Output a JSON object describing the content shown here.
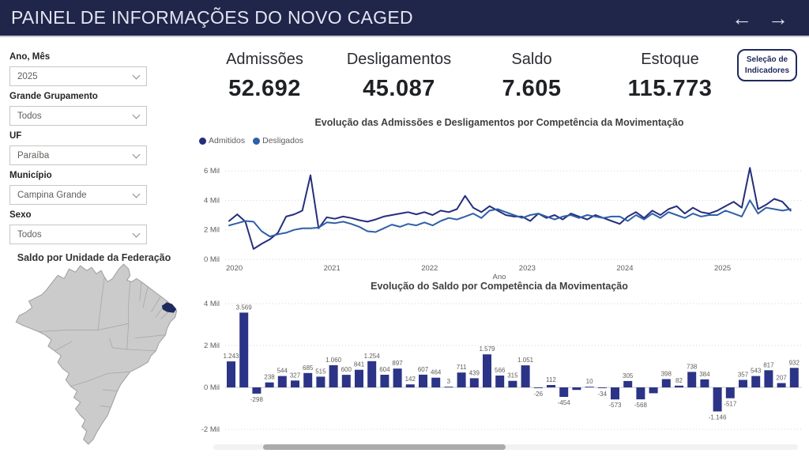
{
  "header": {
    "title": "PAINEL DE INFORMAÇÕES DO NOVO CAGED",
    "nav_back": "←",
    "nav_forward": "→"
  },
  "filters": [
    {
      "label": "Ano, Mês",
      "value": "2025"
    },
    {
      "label": "Grande Grupamento",
      "value": "Todos"
    },
    {
      "label": "UF",
      "value": "Paraíba"
    },
    {
      "label": "Município",
      "value": "Campina Grande"
    },
    {
      "label": "Sexo",
      "value": "Todos"
    }
  ],
  "map": {
    "title": "Saldo por Unidade da Federação",
    "highlight_state": "Paraíba",
    "state_fill": "#cbcbcb",
    "state_border": "#9e9e9e",
    "inner_border": "#a8a8a8",
    "highlight_color": "#1e2a5e"
  },
  "kpis": [
    {
      "label": "Admissões",
      "value": "52.692"
    },
    {
      "label": "Desligamentos",
      "value": "45.087"
    },
    {
      "label": "Saldo",
      "value": "7.605"
    },
    {
      "label": "Estoque",
      "value": "115.773"
    }
  ],
  "selection_button": {
    "line1": "Seleção de",
    "line2": "Indicadores"
  },
  "chart_data": [
    {
      "type": "line",
      "title": "Evolução das Admissões e Desligamentos por Competência da Movimentação",
      "xlabel": "Ano",
      "ylabel": "",
      "x_start": "2020-01",
      "x_interval": "month",
      "x_ticks": [
        "2020",
        "2021",
        "2022",
        "2023",
        "2024",
        "2025"
      ],
      "y_ticks": [
        [
          0,
          "0 Mil"
        ],
        [
          2000,
          "2 Mil"
        ],
        [
          4000,
          "4 Mil"
        ],
        [
          6000,
          "6 Mil"
        ]
      ],
      "ylim": [
        0,
        6700
      ],
      "grid": "dotted",
      "legend_position": "top-left",
      "series": [
        {
          "name": "Admitidos",
          "color": "#252e7d",
          "values": [
            2600,
            3050,
            2550,
            700,
            1050,
            1350,
            1800,
            2900,
            3050,
            3300,
            5700,
            2100,
            2850,
            2750,
            2900,
            2800,
            2650,
            2550,
            2700,
            2900,
            3000,
            3100,
            3200,
            3050,
            3200,
            3000,
            3300,
            3200,
            3400,
            4300,
            3500,
            3200,
            3600,
            3300,
            3000,
            2900,
            2900,
            2600,
            3100,
            2800,
            3000,
            2700,
            3100,
            2900,
            2700,
            3000,
            2800,
            2600,
            2400,
            2900,
            3200,
            2800,
            3300,
            3000,
            3400,
            3600,
            3100,
            3500,
            3200,
            3100,
            3300,
            3600,
            3900,
            3500,
            6200,
            3400,
            3700,
            4100,
            3900,
            3300
          ]
        },
        {
          "name": "Desligados",
          "color": "#2f5fa8",
          "values": [
            2300,
            2450,
            2600,
            2550,
            1900,
            1550,
            1700,
            1800,
            2000,
            2100,
            2100,
            2150,
            2500,
            2450,
            2550,
            2400,
            2200,
            1900,
            1850,
            2100,
            2350,
            2200,
            2400,
            2300,
            2500,
            2300,
            2600,
            2800,
            2700,
            2900,
            3100,
            2800,
            3300,
            3400,
            3200,
            3000,
            2800,
            3000,
            3100,
            2900,
            2700,
            2900,
            3000,
            2800,
            3000,
            2900,
            2800,
            2900,
            2900,
            2600,
            3000,
            2700,
            3100,
            2800,
            3200,
            3000,
            2800,
            3100,
            2900,
            3000,
            3000,
            3300,
            3100,
            2900,
            4000,
            3100,
            3500,
            3400,
            3300,
            3400
          ]
        }
      ]
    },
    {
      "type": "bar",
      "title": "Evolução do Saldo por Competência da Movimentação",
      "xlabel": "",
      "ylabel": "",
      "y_ticks": [
        [
          -2000,
          "-2 Mil"
        ],
        [
          0,
          "0 Mil"
        ],
        [
          2000,
          "2 Mil"
        ],
        [
          4000,
          "4 Mil"
        ]
      ],
      "ylim": [
        -2300,
        4300
      ],
      "grid": "dotted",
      "bar_color": "#2b3487",
      "values": [
        1243,
        3569,
        -298,
        238,
        544,
        327,
        685,
        515,
        1060,
        600,
        841,
        1254,
        604,
        897,
        142,
        607,
        464,
        3,
        711,
        439,
        1579,
        566,
        315,
        1051,
        -26,
        112,
        -454,
        -120,
        10,
        -34,
        -573,
        305,
        -568,
        -280,
        398,
        82,
        738,
        384,
        -1146,
        -517,
        357,
        543,
        817,
        207,
        932
      ],
      "labels": [
        "1.243",
        "3.569",
        "-298",
        "238",
        "544",
        "327",
        "685",
        "515",
        "1.060",
        "600",
        "841",
        "1.254",
        "604",
        "897",
        "142",
        "607",
        "464",
        "3",
        "711",
        "439",
        "1.579",
        "566",
        "315",
        "1.051",
        "-26",
        "112",
        "-454",
        "",
        "10",
        "-34",
        "-573",
        "305",
        "-568",
        "",
        "398",
        "82",
        "738",
        "384",
        "-1.146",
        "-517",
        "357",
        "543",
        "817",
        "207",
        "932"
      ]
    }
  ]
}
